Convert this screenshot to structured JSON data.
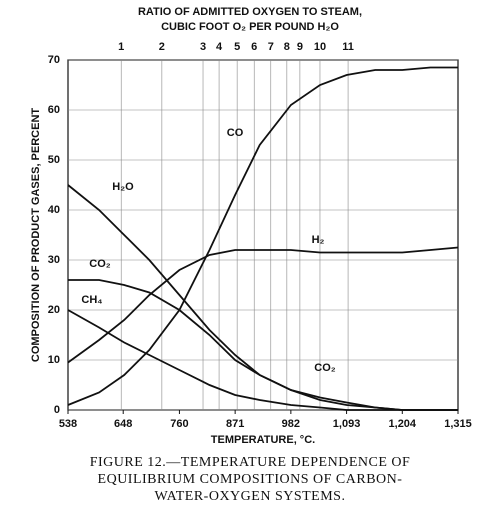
{
  "chart_data": {
    "type": "line",
    "title": [
      "RATIO OF ADMITTED OXYGEN TO STEAM,",
      "CUBIC FOOT O₂ PER POUND H₂O"
    ],
    "x_label": "TEMPERATURE, °C.",
    "y_label": "COMPOSITION OF PRODUCT GASES, PERCENT",
    "caption": [
      "FIGURE 12.—TEMPERATURE DEPENDENCE OF",
      "EQUILIBRIUM COMPOSITIONS OF CARBON-",
      "WATER-OXYGEN SYSTEMS."
    ],
    "x": [
      538,
      600,
      650,
      700,
      760,
      820,
      871,
      920,
      982,
      1040,
      1093,
      1150,
      1204,
      1260,
      1315
    ],
    "series": [
      {
        "name": "CO",
        "color": "#111111",
        "values": [
          1,
          3.5,
          7,
          12,
          20,
          32,
          43,
          53,
          61,
          65,
          67,
          68,
          68,
          68.5,
          68.5
        ]
      },
      {
        "name": "H₂",
        "color": "#111111",
        "values": [
          9.5,
          14,
          18,
          23,
          28,
          31,
          32,
          32,
          32,
          31.5,
          31.5,
          31.5,
          31.5,
          32,
          32.5
        ]
      },
      {
        "name": "H₂O",
        "color": "#111111",
        "values": [
          45,
          40,
          35,
          30,
          23,
          16,
          11,
          7,
          4,
          2.5,
          1.5,
          0.5,
          0,
          0,
          0
        ]
      },
      {
        "name": "CO₂",
        "color": "#111111",
        "values": [
          26,
          26,
          25,
          23.5,
          20,
          15,
          10,
          7,
          4,
          2,
          1,
          0.5,
          0,
          0,
          0
        ]
      },
      {
        "name": "CH₄",
        "color": "#111111",
        "values": [
          20,
          16.5,
          13.5,
          11,
          8,
          5,
          3,
          2,
          1,
          0.5,
          0,
          0,
          0,
          0,
          0
        ]
      }
    ],
    "xlim": [
      538,
      1315
    ],
    "xticks": [
      538,
      648,
      760,
      871,
      982,
      {
        "value": 1093,
        "label": "1,093"
      },
      {
        "value": 1204,
        "label": "1,204"
      },
      {
        "value": 1315,
        "label": "1,315"
      }
    ],
    "x2ticks": [
      {
        "value": 644,
        "label": "1"
      },
      {
        "value": 725,
        "label": "2"
      },
      {
        "value": 807,
        "label": "3"
      },
      {
        "value": 839,
        "label": "4"
      },
      {
        "value": 875,
        "label": "5"
      },
      {
        "value": 909,
        "label": "6"
      },
      {
        "value": 942,
        "label": "7"
      },
      {
        "value": 974,
        "label": "8"
      },
      {
        "value": 1000,
        "label": "9"
      },
      {
        "value": 1040,
        "label": "10"
      },
      {
        "value": 1096,
        "label": "11"
      }
    ],
    "ylim": [
      0,
      70
    ],
    "yticks": [
      0,
      10,
      20,
      30,
      40,
      50,
      60,
      70
    ],
    "grid": true
  }
}
